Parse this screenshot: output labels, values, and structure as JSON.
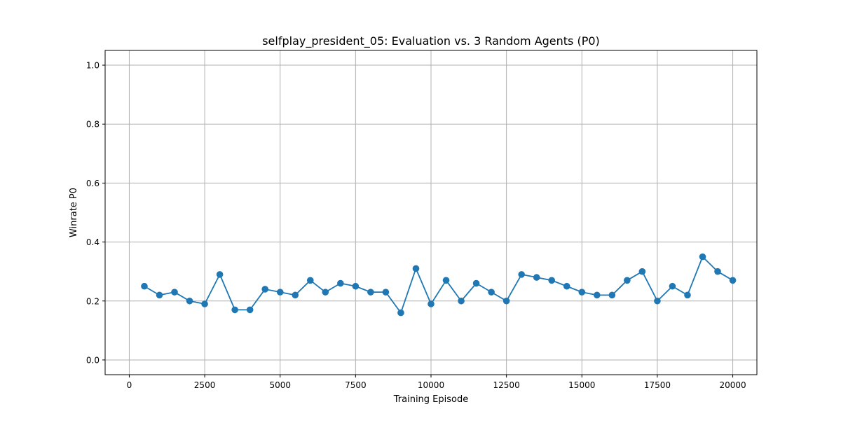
{
  "chart_data": {
    "type": "line",
    "title": "selfplay_president_05: Evaluation vs. 3 Random Agents (P0)",
    "xlabel": "Training Episode",
    "ylabel": "Winrate P0",
    "xlim": [
      -800,
      20800
    ],
    "ylim": [
      -0.05,
      1.05
    ],
    "xticks": [
      0,
      2500,
      5000,
      7500,
      10000,
      12500,
      15000,
      17500,
      20000
    ],
    "xtick_labels": [
      "0",
      "2500",
      "5000",
      "7500",
      "10000",
      "12500",
      "15000",
      "17500",
      "20000"
    ],
    "yticks": [
      0.0,
      0.2,
      0.4,
      0.6,
      0.8,
      1.0
    ],
    "ytick_labels": [
      "0.0",
      "0.2",
      "0.4",
      "0.6",
      "0.8",
      "1.0"
    ],
    "grid": true,
    "marker": "circle",
    "x": [
      500,
      1000,
      1500,
      2000,
      2500,
      3000,
      3500,
      4000,
      4500,
      5000,
      5500,
      6000,
      6500,
      7000,
      7500,
      8000,
      8500,
      9000,
      9500,
      10000,
      10500,
      11000,
      11500,
      12000,
      12500,
      13000,
      13500,
      14000,
      14500,
      15000,
      15500,
      16000,
      16500,
      17000,
      17500,
      18000,
      18500,
      19000,
      19500,
      20000
    ],
    "series": [
      {
        "color": "#1f77b4",
        "values": [
          0.25,
          0.22,
          0.23,
          0.2,
          0.19,
          0.29,
          0.17,
          0.17,
          0.24,
          0.23,
          0.22,
          0.27,
          0.23,
          0.26,
          0.25,
          0.23,
          0.23,
          0.16,
          0.31,
          0.19,
          0.27,
          0.2,
          0.26,
          0.23,
          0.2,
          0.29,
          0.28,
          0.27,
          0.25,
          0.23,
          0.22,
          0.22,
          0.27,
          0.3,
          0.2,
          0.25,
          0.22,
          0.35,
          0.3,
          0.27
        ]
      }
    ]
  }
}
